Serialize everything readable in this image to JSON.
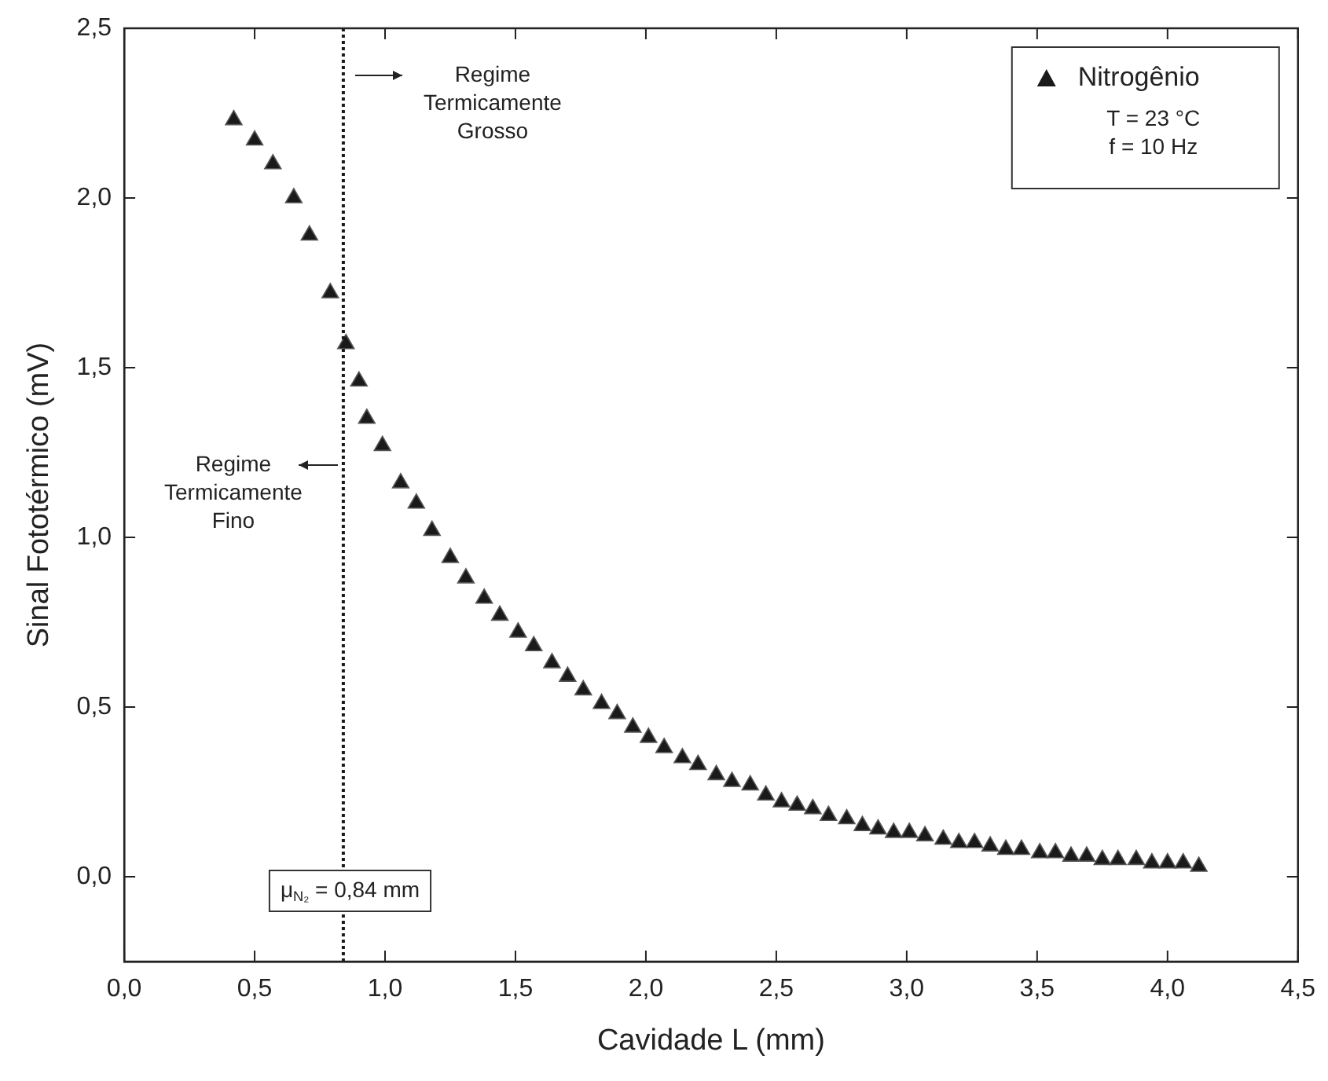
{
  "chart_data": {
    "type": "scatter",
    "xlabel": "Cavidade L (mm)",
    "ylabel": "Sinal Fototérmico (mV)",
    "xlim": [
      0,
      4.5
    ],
    "ylim": [
      -0.25,
      2.5
    ],
    "xticks": [
      {
        "value": 0,
        "label": "0,0"
      },
      {
        "value": 0.5,
        "label": "0,5"
      },
      {
        "value": 1,
        "label": "1,0"
      },
      {
        "value": 1.5,
        "label": "1,5"
      },
      {
        "value": 2,
        "label": "2,0"
      },
      {
        "value": 2.5,
        "label": "2,5"
      },
      {
        "value": 3,
        "label": "3,0"
      },
      {
        "value": 3.5,
        "label": "3,5"
      },
      {
        "value": 4,
        "label": "4,0"
      },
      {
        "value": 4.5,
        "label": "4,5"
      }
    ],
    "yticks": [
      {
        "value": 0,
        "label": "0,0"
      },
      {
        "value": 0.5,
        "label": "0,5"
      },
      {
        "value": 1,
        "label": "1,0"
      },
      {
        "value": 1.5,
        "label": "1,5"
      },
      {
        "value": 2,
        "label": "2,0"
      },
      {
        "value": 2.5,
        "label": "2,5"
      }
    ],
    "grid": false,
    "legend": "top right",
    "marker": "triangle",
    "series": [
      {
        "name": "Nitrogênio",
        "color": "#1a1a1a",
        "x": [
          0.42,
          0.5,
          0.57,
          0.65,
          0.71,
          0.79,
          0.85,
          0.9,
          0.93,
          0.99,
          1.06,
          1.12,
          1.18,
          1.25,
          1.31,
          1.38,
          1.44,
          1.51,
          1.57,
          1.64,
          1.7,
          1.76,
          1.83,
          1.89,
          1.95,
          2.01,
          2.07,
          2.14,
          2.2,
          2.27,
          2.33,
          2.4,
          2.46,
          2.52,
          2.58,
          2.64,
          2.7,
          2.77,
          2.83,
          2.89,
          2.95,
          3.01,
          3.07,
          3.14,
          3.2,
          3.26,
          3.32,
          3.38,
          3.44,
          3.51,
          3.57,
          3.63,
          3.69,
          3.75,
          3.81,
          3.88,
          3.94,
          4.0,
          4.06,
          4.12
        ],
        "values": [
          2.23,
          2.17,
          2.1,
          2.0,
          1.89,
          1.72,
          1.57,
          1.46,
          1.35,
          1.27,
          1.16,
          1.1,
          1.02,
          0.94,
          0.88,
          0.82,
          0.77,
          0.72,
          0.68,
          0.63,
          0.59,
          0.55,
          0.51,
          0.48,
          0.44,
          0.41,
          0.38,
          0.35,
          0.33,
          0.3,
          0.28,
          0.27,
          0.24,
          0.22,
          0.21,
          0.2,
          0.18,
          0.17,
          0.15,
          0.14,
          0.13,
          0.13,
          0.12,
          0.11,
          0.1,
          0.1,
          0.09,
          0.08,
          0.08,
          0.07,
          0.07,
          0.06,
          0.06,
          0.05,
          0.05,
          0.05,
          0.04,
          0.04,
          0.04,
          0.03
        ]
      }
    ],
    "ref_lines": [
      {
        "axis": "x",
        "value": 0.84,
        "label": "μ$_{N₂}$ = 0,84 mm",
        "line_style": "dotted",
        "color": "#1a1a1a"
      }
    ],
    "annotations": [
      "Regime\nTermicamente\nGrosso",
      "Regime\nTermicamente\nFino",
      "T = 23 °C",
      "f = 10 Hz"
    ]
  }
}
